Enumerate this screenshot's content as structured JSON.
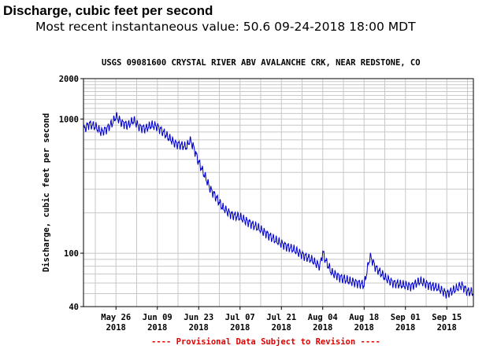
{
  "header": {
    "title": "Discharge, cubic feet per second",
    "subtitle": "Most recent instantaneous value: 50.6 09-24-2018   18:00 MDT"
  },
  "chart_data": {
    "type": "line",
    "title": "USGS 09081600 CRYSTAL RIVER ABV AVALANCHE CRK, NEAR REDSTONE, CO",
    "xlabel": "",
    "ylabel": "Discharge, cubic feet per second",
    "y_scale": "log",
    "ylim": [
      40,
      2000
    ],
    "y_ticks": [
      {
        "value": 2000,
        "label": "2000"
      },
      {
        "value": 1000,
        "label": "1000"
      },
      {
        "value": 100,
        "label": "100"
      },
      {
        "value": 40,
        "label": "40"
      }
    ],
    "x_range": [
      "2018-05-15",
      "2018-09-24"
    ],
    "x_ticks": [
      {
        "date": "2018-05-26",
        "label": "May 26",
        "sub": "2018"
      },
      {
        "date": "2018-06-09",
        "label": "Jun 09",
        "sub": "2018"
      },
      {
        "date": "2018-06-23",
        "label": "Jun 23",
        "sub": "2018"
      },
      {
        "date": "2018-07-07",
        "label": "Jul 07",
        "sub": "2018"
      },
      {
        "date": "2018-07-21",
        "label": "Jul 21",
        "sub": "2018"
      },
      {
        "date": "2018-08-04",
        "label": "Aug 04",
        "sub": "2018"
      },
      {
        "date": "2018-08-18",
        "label": "Aug 18",
        "sub": "2018"
      },
      {
        "date": "2018-09-01",
        "label": "Sep 01",
        "sub": "2018"
      },
      {
        "date": "2018-09-15",
        "label": "Sep 15",
        "sub": "2018"
      }
    ],
    "grid": true,
    "line_color": "#0000cc",
    "series": [
      {
        "x": [
          "2018-05-15",
          "2018-05-17",
          "2018-05-19",
          "2018-05-21",
          "2018-05-23",
          "2018-05-25",
          "2018-05-26",
          "2018-05-28",
          "2018-05-30",
          "2018-06-01",
          "2018-06-03",
          "2018-06-05",
          "2018-06-07",
          "2018-06-09",
          "2018-06-11",
          "2018-06-13",
          "2018-06-15",
          "2018-06-17",
          "2018-06-19",
          "2018-06-20",
          "2018-06-21",
          "2018-06-23",
          "2018-06-25",
          "2018-06-27",
          "2018-06-29",
          "2018-07-01",
          "2018-07-04",
          "2018-07-07",
          "2018-07-10",
          "2018-07-13",
          "2018-07-16",
          "2018-07-19",
          "2018-07-22",
          "2018-07-25",
          "2018-07-28",
          "2018-07-31",
          "2018-08-03",
          "2018-08-04",
          "2018-08-05",
          "2018-08-07",
          "2018-08-10",
          "2018-08-13",
          "2018-08-16",
          "2018-08-18",
          "2018-08-20",
          "2018-08-22",
          "2018-08-25",
          "2018-08-28",
          "2018-08-31",
          "2018-09-03",
          "2018-09-06",
          "2018-09-09",
          "2018-09-12",
          "2018-09-15",
          "2018-09-18",
          "2018-09-20",
          "2018-09-22",
          "2018-09-24"
        ],
        "values": [
          840,
          920,
          880,
          800,
          850,
          950,
          1050,
          940,
          900,
          980,
          870,
          850,
          900,
          880,
          800,
          720,
          660,
          640,
          620,
          700,
          640,
          480,
          380,
          300,
          260,
          220,
          195,
          185,
          170,
          155,
          140,
          125,
          115,
          107,
          98,
          90,
          80,
          102,
          88,
          72,
          66,
          62,
          60,
          58,
          95,
          78,
          66,
          60,
          58,
          57,
          62,
          58,
          55,
          50,
          54,
          58,
          52,
          51
        ]
      }
    ]
  },
  "footer": {
    "note": "---- Provisional Data Subject to Revision ----"
  }
}
